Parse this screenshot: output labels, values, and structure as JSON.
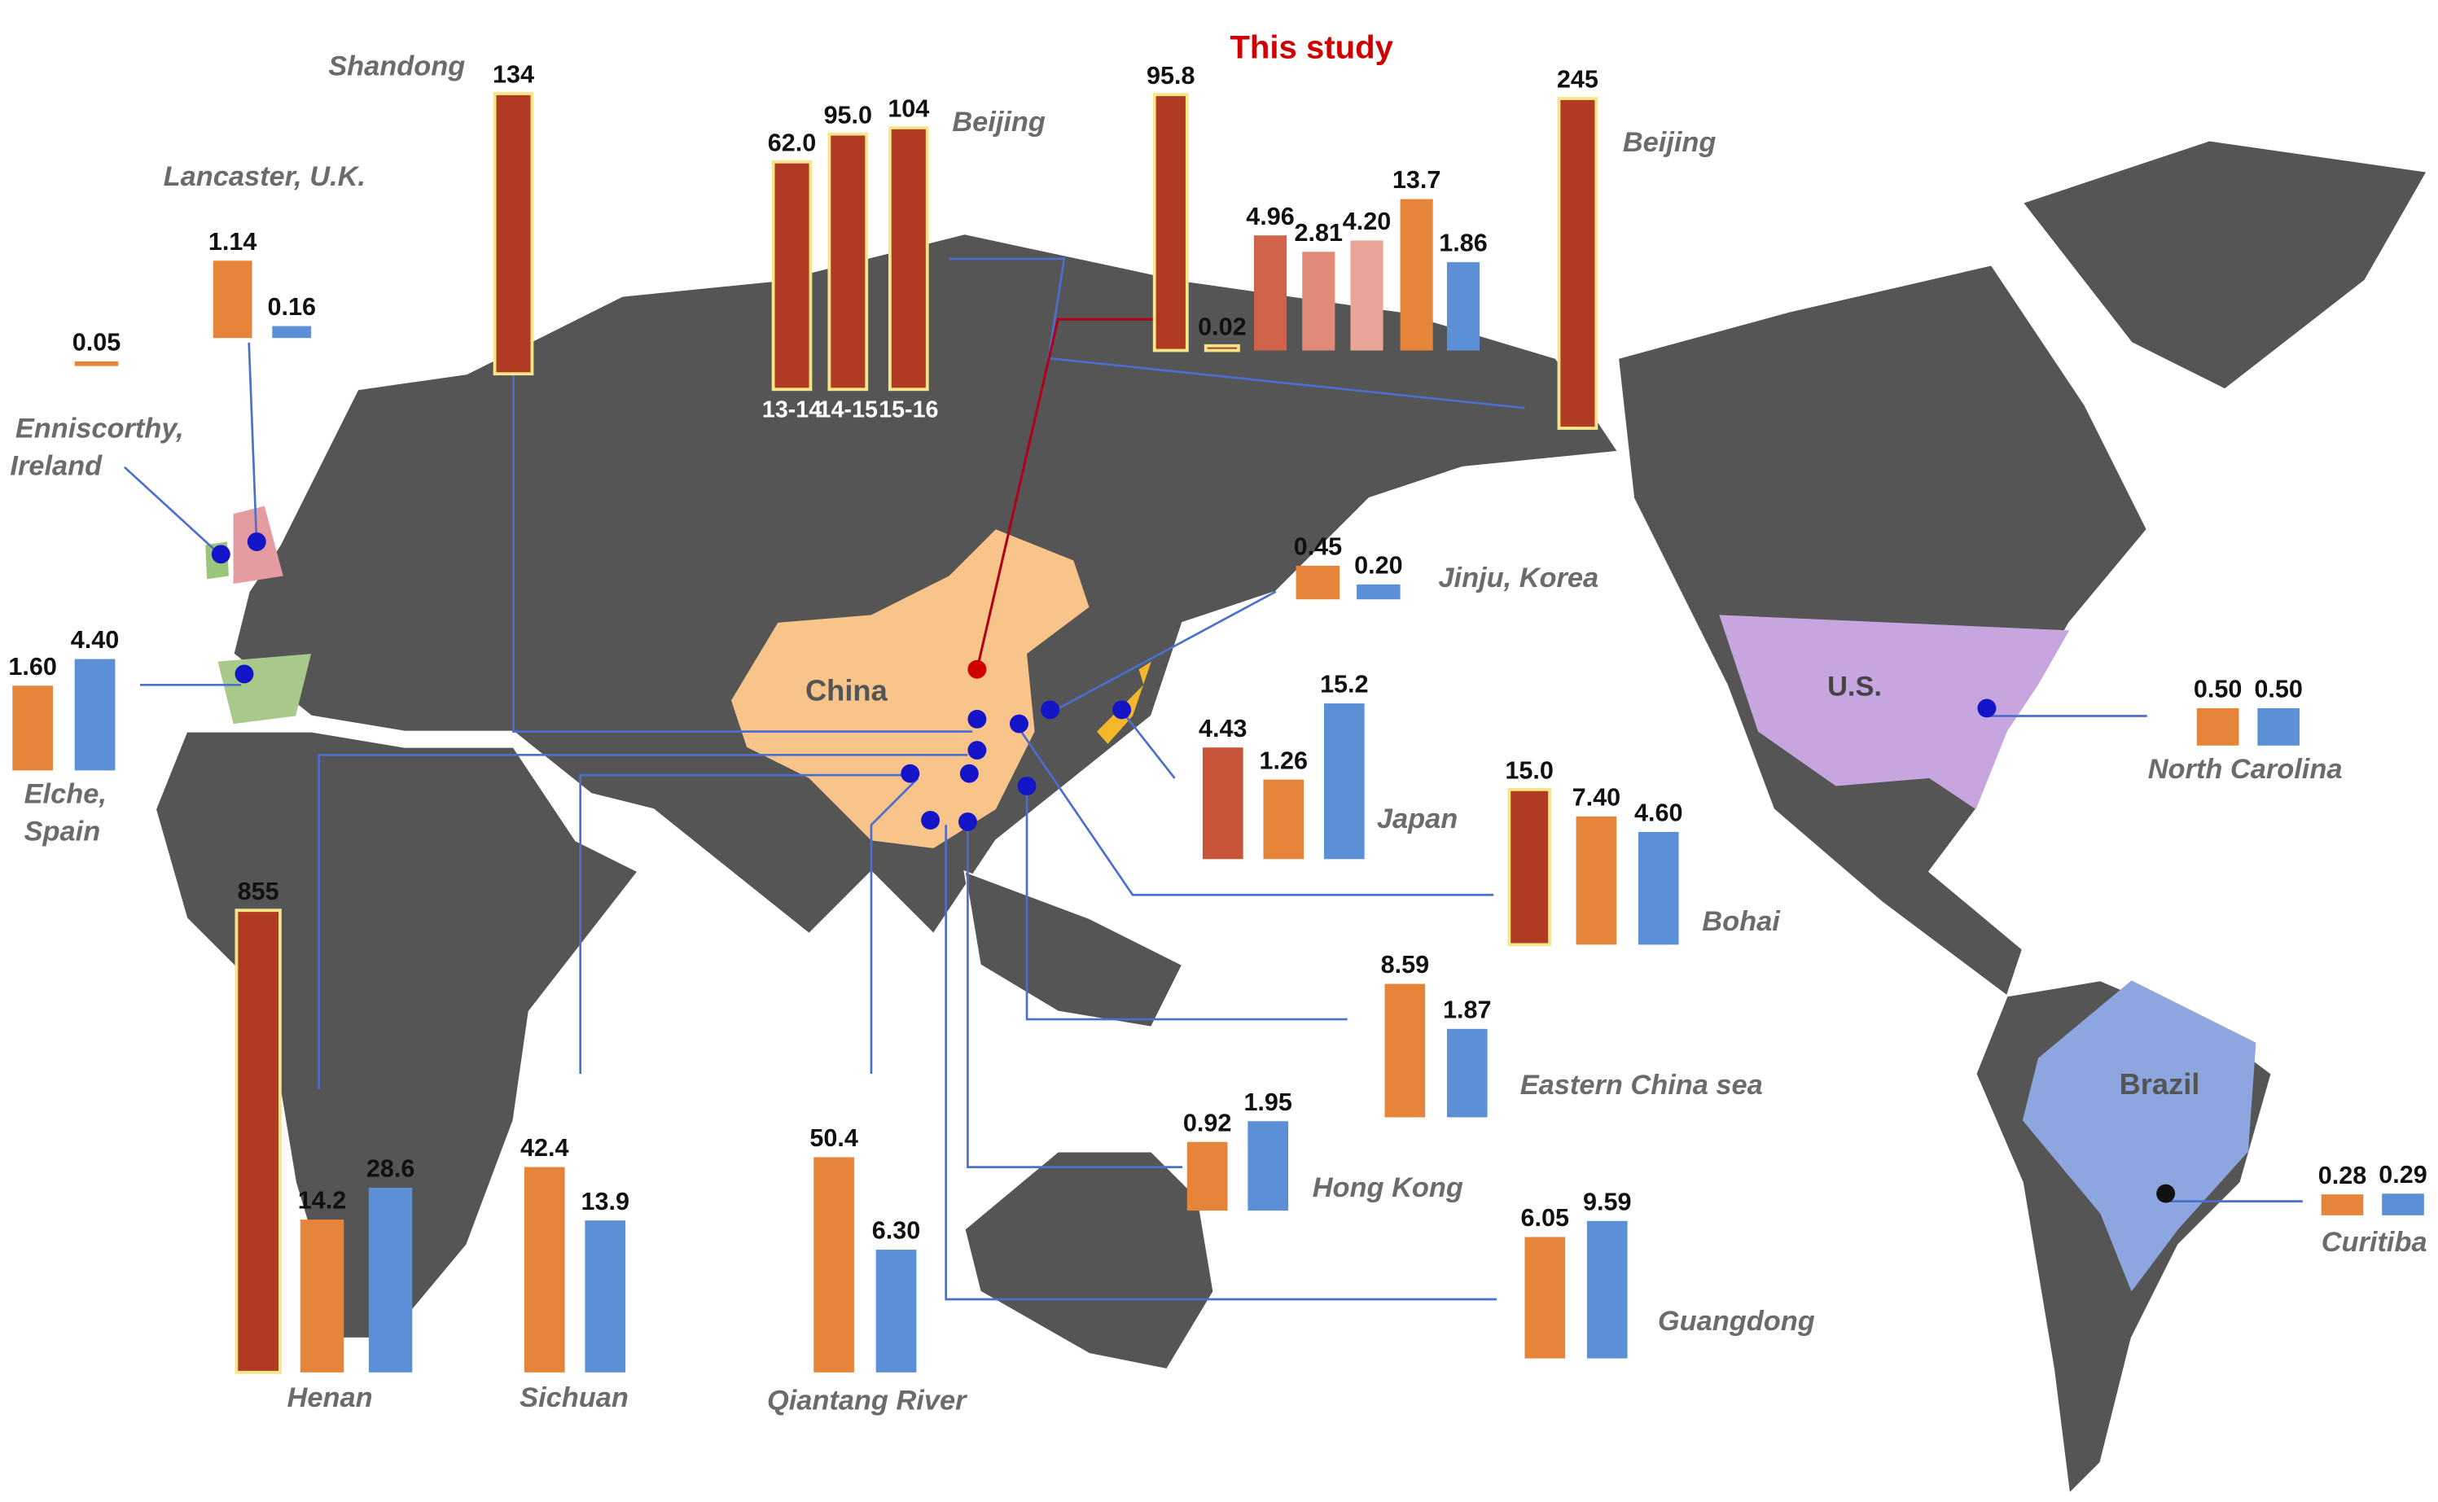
{
  "chart_data": {
    "type": "bar",
    "annotation": "This study",
    "regions": [
      "China",
      "U.S.",
      "Brazil"
    ],
    "groups": [
      {
        "name": "Shandong",
        "values": [
          134
        ],
        "value_labels": [
          "134"
        ],
        "colors": [
          "#b03a22"
        ]
      },
      {
        "name": "Beijing",
        "categories": [
          "13-14",
          "14-15",
          "15-16"
        ],
        "values": [
          62.0,
          95.0,
          104
        ],
        "value_labels": [
          "62.0",
          "95.0",
          "104"
        ],
        "colors": [
          "#b03a22",
          "#b03a22",
          "#b03a22"
        ]
      },
      {
        "name": "This study",
        "values": [
          95.8,
          0.02,
          4.96,
          2.81,
          4.2,
          13.7,
          1.86
        ],
        "value_labels": [
          "95.8",
          "0.02",
          "4.96",
          "2.81",
          "4.20",
          "13.7",
          "1.86"
        ],
        "colors": [
          "#b03a22",
          "#b03a22",
          "#d0634a",
          "#e08a78",
          "#eba598",
          "#e6843a",
          "#5b8fd6"
        ]
      },
      {
        "name": "Beijing",
        "values": [
          245
        ],
        "value_labels": [
          "245"
        ],
        "colors": [
          "#b03a22"
        ]
      },
      {
        "name": "Lancaster, U.K.",
        "values": [
          1.14,
          0.16
        ],
        "value_labels": [
          "1.14",
          "0.16"
        ],
        "colors": [
          "#e6843a",
          "#5b8fd6"
        ]
      },
      {
        "name": [
          "Enniscorthy,",
          "Ireland"
        ],
        "values": [
          0.05
        ],
        "value_labels": [
          "0.05"
        ],
        "colors": [
          "#e6843a"
        ]
      },
      {
        "name": [
          "Elche,",
          "Spain"
        ],
        "values": [
          1.6,
          4.4
        ],
        "value_labels": [
          "1.60",
          "4.40"
        ],
        "colors": [
          "#e6843a",
          "#5b8fd6"
        ]
      },
      {
        "name": "Jinju, Korea",
        "values": [
          0.45,
          0.2
        ],
        "value_labels": [
          "0.45",
          "0.20"
        ],
        "colors": [
          "#e6843a",
          "#5b8fd6"
        ]
      },
      {
        "name": "Japan",
        "values": [
          4.43,
          1.26,
          15.2
        ],
        "value_labels": [
          "4.43",
          "1.26",
          "15.2"
        ],
        "colors": [
          "#c8553a",
          "#e6843a",
          "#5b8fd6"
        ]
      },
      {
        "name": "Bohai",
        "values": [
          15.0,
          7.4,
          4.6
        ],
        "value_labels": [
          "15.0",
          "7.40",
          "4.60"
        ],
        "colors": [
          "#b03a22",
          "#e6843a",
          "#5b8fd6"
        ]
      },
      {
        "name": "Eastern China sea",
        "values": [
          8.59,
          1.87
        ],
        "value_labels": [
          "8.59",
          "1.87"
        ],
        "colors": [
          "#e6843a",
          "#5b8fd6"
        ]
      },
      {
        "name": "Hong Kong",
        "values": [
          0.92,
          1.95
        ],
        "value_labels": [
          "0.92",
          "1.95"
        ],
        "colors": [
          "#e6843a",
          "#5b8fd6"
        ]
      },
      {
        "name": "Guangdong",
        "values": [
          6.05,
          9.59
        ],
        "value_labels": [
          "6.05",
          "9.59"
        ],
        "colors": [
          "#e6843a",
          "#5b8fd6"
        ]
      },
      {
        "name": "Qiantang River",
        "values": [
          50.4,
          6.3
        ],
        "value_labels": [
          "50.4",
          "6.30"
        ],
        "colors": [
          "#e6843a",
          "#5b8fd6"
        ]
      },
      {
        "name": "Sichuan",
        "values": [
          42.4,
          13.9
        ],
        "value_labels": [
          "42.4",
          "13.9"
        ],
        "colors": [
          "#e6843a",
          "#5b8fd6"
        ]
      },
      {
        "name": "Henan",
        "values": [
          855,
          14.2,
          28.6
        ],
        "value_labels": [
          "855",
          "14.2",
          "28.6"
        ],
        "colors": [
          "#b03a22",
          "#e6843a",
          "#5b8fd6"
        ]
      },
      {
        "name": "North Carolina",
        "values": [
          0.5,
          0.5
        ],
        "value_labels": [
          "0.50",
          "0.50"
        ],
        "colors": [
          "#e6843a",
          "#5b8fd6"
        ]
      },
      {
        "name": "Curitiba",
        "values": [
          0.28,
          0.29
        ],
        "value_labels": [
          "0.28",
          "0.29"
        ],
        "colors": [
          "#e6843a",
          "#5b8fd6"
        ]
      }
    ]
  }
}
